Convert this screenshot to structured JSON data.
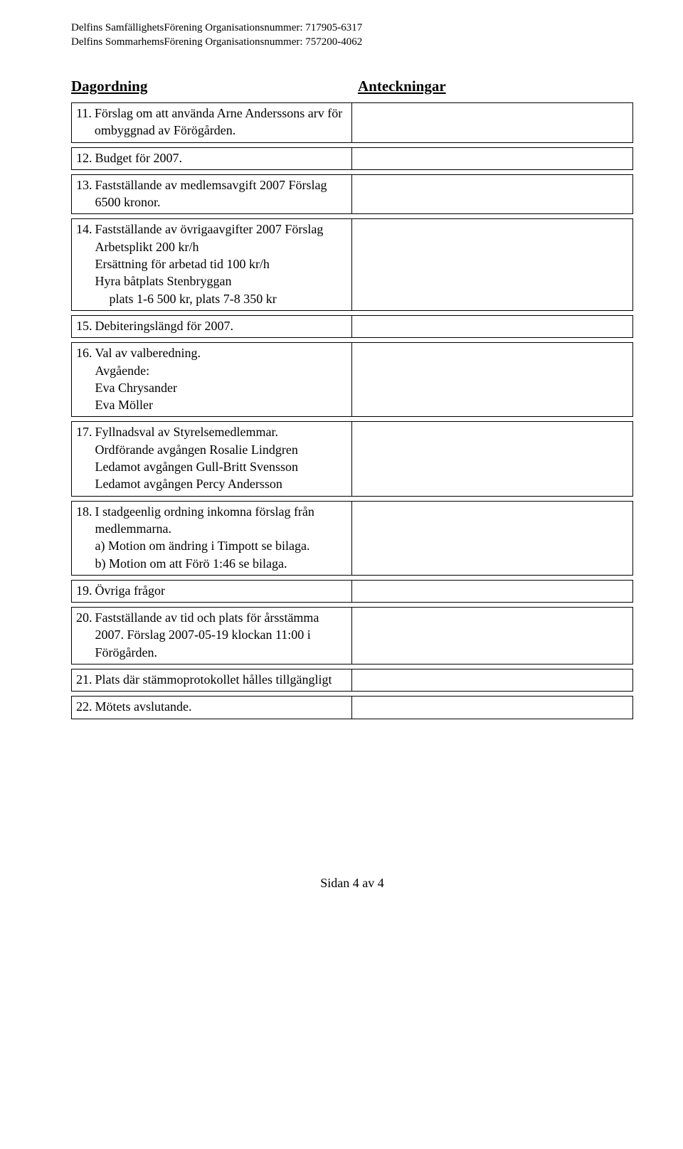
{
  "header": {
    "line1": "Delfins SamfällighetsFörening Organisationsnummer: 717905-6317",
    "line2": "Delfins SommarhemsFörening Organisationsnummer: 757200-4062"
  },
  "headings": {
    "left": "Dagordning",
    "right": "Anteckningar"
  },
  "items": [
    {
      "num": "11.",
      "lines": [
        "Förslag om att använda Arne Anderssons arv för",
        "ombyggnad av Förögården."
      ]
    },
    {
      "num": "12.",
      "lines": [
        "Budget för 2007."
      ]
    },
    {
      "num": "13.",
      "lines": [
        "Fastställande av medlemsavgift 2007 Förslag",
        "6500 kronor."
      ]
    },
    {
      "num": "14.",
      "lines": [
        "Fastställande av övrigaavgifter 2007 Förslag",
        "Arbetsplikt 200 kr/h",
        "Ersättning för arbetad tid 100 kr/h",
        "Hyra båtplats Stenbryggan"
      ],
      "indented_lines": [
        "plats 1-6 500 kr,   plats 7-8 350 kr"
      ]
    },
    {
      "num": "15.",
      "lines": [
        "Debiteringslängd för 2007."
      ]
    },
    {
      "num": "16.",
      "lines": [
        "Val av valberedning.",
        "Avgående:",
        "Eva Chrysander",
        "Eva Möller"
      ]
    },
    {
      "num": "17.",
      "lines": [
        "Fyllnadsval av Styrelsemedlemmar.",
        "Ordförande avgången Rosalie Lindgren",
        "Ledamot avgången Gull-Britt Svensson",
        "Ledamot avgången Percy Andersson"
      ]
    },
    {
      "num": "18.",
      "lines": [
        "I stadgeenlig ordning inkomna förslag från",
        "medlemmarna.",
        "a) Motion om ändring i Timpott se bilaga.",
        "b) Motion om att Förö 1:46 se bilaga."
      ]
    },
    {
      "num": "19.",
      "lines": [
        "Övriga frågor"
      ]
    },
    {
      "num": "20.",
      "lines": [
        "Fastställande av tid och plats för årsstämma",
        "2007. Förslag 2007-05-19 klockan 11:00 i",
        "Förögården."
      ]
    },
    {
      "num": "21.",
      "lines": [
        "Plats där stämmoprotokollet hålles tillgängligt"
      ]
    },
    {
      "num": "22.",
      "lines": [
        "Mötets avslutande."
      ]
    }
  ],
  "footer": "Sidan 4 av 4"
}
